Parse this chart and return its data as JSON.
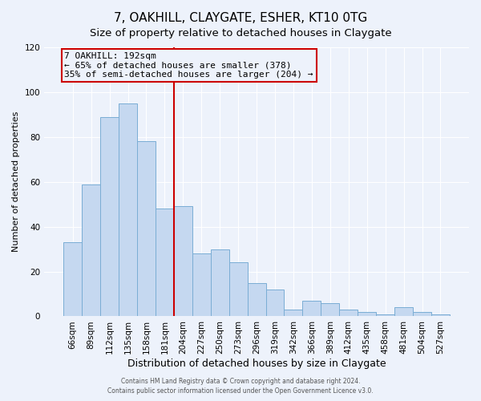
{
  "title": "7, OAKHILL, CLAYGATE, ESHER, KT10 0TG",
  "subtitle": "Size of property relative to detached houses in Claygate",
  "xlabel": "Distribution of detached houses by size in Claygate",
  "ylabel": "Number of detached properties",
  "categories": [
    "66sqm",
    "89sqm",
    "112sqm",
    "135sqm",
    "158sqm",
    "181sqm",
    "204sqm",
    "227sqm",
    "250sqm",
    "273sqm",
    "296sqm",
    "319sqm",
    "342sqm",
    "366sqm",
    "389sqm",
    "412sqm",
    "435sqm",
    "458sqm",
    "481sqm",
    "504sqm",
    "527sqm"
  ],
  "values": [
    33,
    59,
    89,
    95,
    78,
    48,
    49,
    28,
    30,
    24,
    15,
    12,
    3,
    7,
    6,
    3,
    2,
    1,
    4,
    2,
    1
  ],
  "bar_color": "#c5d8f0",
  "bar_edge_color": "#7aadd4",
  "background_color": "#edf2fb",
  "grid_color": "#ffffff",
  "vline_x": 5.5,
  "vline_color": "#cc0000",
  "annotation_title": "7 OAKHILL: 192sqm",
  "annotation_line1": "← 65% of detached houses are smaller (378)",
  "annotation_line2": "35% of semi-detached houses are larger (204) →",
  "annotation_box_edgecolor": "#cc0000",
  "ylim": [
    0,
    120
  ],
  "yticks": [
    0,
    20,
    40,
    60,
    80,
    100,
    120
  ],
  "footer1": "Contains HM Land Registry data © Crown copyright and database right 2024.",
  "footer2": "Contains public sector information licensed under the Open Government Licence v3.0.",
  "title_fontsize": 11,
  "subtitle_fontsize": 9.5,
  "xlabel_fontsize": 9,
  "ylabel_fontsize": 8,
  "tick_fontsize": 7.5,
  "annotation_fontsize": 8,
  "footer_fontsize": 5.5
}
